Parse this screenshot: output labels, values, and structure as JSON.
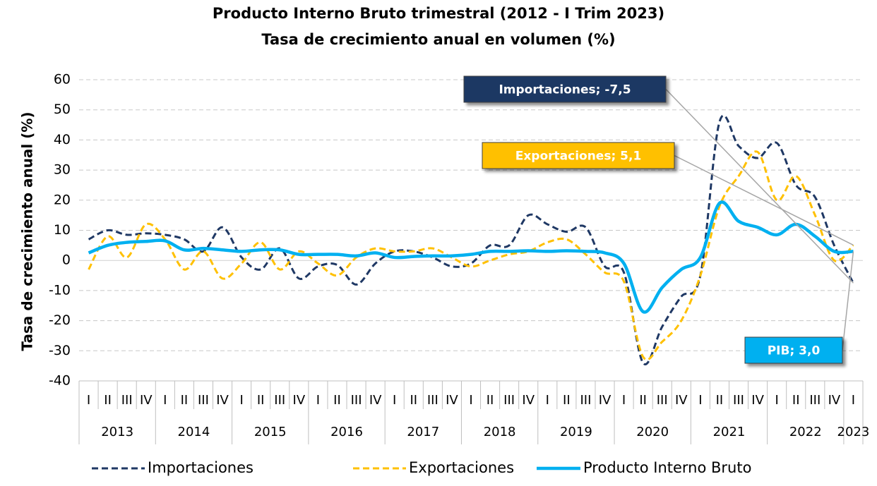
{
  "chart_data": {
    "type": "line",
    "title": "Producto Interno Bruto trimestral (2012 - I Trim 2023)",
    "subtitle": "Tasa de crecimiento anual en volumen (%)",
    "y_label": "Tasa de crecimiento anual (%)",
    "categories": [
      "I",
      "II",
      "III",
      "IV",
      "I",
      "II",
      "III",
      "IV",
      "I",
      "II",
      "III",
      "IV",
      "I",
      "II",
      "III",
      "IV",
      "I",
      "II",
      "III",
      "IV",
      "I",
      "II",
      "III",
      "IV",
      "I",
      "II",
      "III",
      "IV",
      "I",
      "II",
      "III",
      "IV",
      "I",
      "II",
      "III",
      "IV",
      "I",
      "II",
      "III",
      "IV",
      "I"
    ],
    "category_years": [
      "2013",
      "2013",
      "2013",
      "2013",
      "2014",
      "2014",
      "2014",
      "2014",
      "2015",
      "2015",
      "2015",
      "2015",
      "2016",
      "2016",
      "2016",
      "2016",
      "2017",
      "2017",
      "2017",
      "2017",
      "2018",
      "2018",
      "2018",
      "2018",
      "2019",
      "2019",
      "2019",
      "2019",
      "2020",
      "2020",
      "2020",
      "2020",
      "2021",
      "2021",
      "2021",
      "2021",
      "2022",
      "2022",
      "2022",
      "2022",
      "2023"
    ],
    "series": [
      {
        "name": "Importaciones",
        "color": "#1f3864",
        "dashed": true,
        "values": [
          7,
          10,
          8.5,
          9,
          8.5,
          7,
          3,
          11,
          1,
          -3,
          4,
          -6,
          -2,
          -1.5,
          -8,
          -1,
          3,
          3,
          1,
          -2,
          -1,
          5,
          5,
          15,
          12,
          9.5,
          11,
          -2,
          -4,
          -34,
          -22,
          -12,
          -5,
          46,
          38,
          34,
          39,
          25,
          21,
          5,
          -7.5
        ]
      },
      {
        "name": "Exportaciones",
        "color": "#ffc000",
        "dashed": true,
        "values": [
          -3,
          8,
          1,
          12,
          7,
          -3,
          3,
          -6,
          -1,
          6,
          -3,
          3,
          -1,
          -5,
          1,
          4,
          3,
          3,
          4,
          1,
          -2,
          0,
          2,
          3,
          6,
          7,
          2,
          -4,
          -7,
          -32,
          -27,
          -20,
          -5,
          18,
          28,
          36,
          20,
          28,
          15,
          0,
          5.1
        ]
      },
      {
        "name": "Producto Interno Bruto",
        "color": "#00b0f0",
        "dashed": false,
        "values": [
          2.5,
          5,
          6,
          6.3,
          6.5,
          3.5,
          4,
          3.5,
          3,
          3.5,
          3.5,
          2,
          2,
          2,
          1.5,
          2.5,
          1,
          1.3,
          1.5,
          1.5,
          2,
          3,
          3,
          3.2,
          3,
          3.2,
          3,
          2.5,
          -1,
          -17,
          -9,
          -3,
          1,
          19,
          13,
          11,
          8.5,
          12,
          8,
          3,
          3.0
        ]
      }
    ],
    "annotations": [
      "Importaciones; -7,5",
      "Exportaciones; 5,1",
      "PIB; 3,0"
    ],
    "ylim": [
      -40,
      60
    ],
    "yticks": [
      -40,
      -30,
      -20,
      -10,
      0,
      10,
      20,
      30,
      40,
      50,
      60
    ],
    "grid": true,
    "legend": "bottom"
  }
}
